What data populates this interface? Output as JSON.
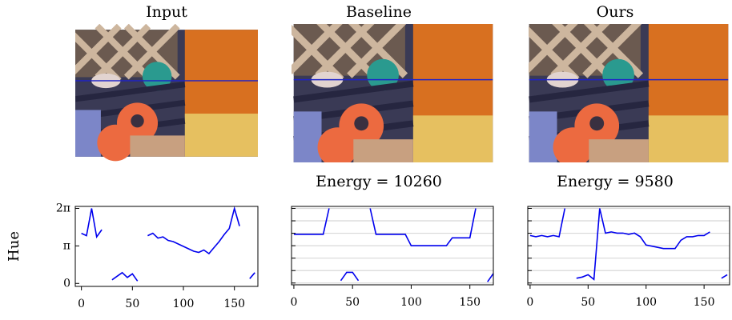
{
  "y_label": "Hue",
  "panels": [
    {
      "title": "Input",
      "plot": {
        "type": "line",
        "color": "#0000ee",
        "grid": false,
        "x": [
          0,
          5,
          10,
          15,
          20,
          25,
          30,
          35,
          40,
          45,
          50,
          55,
          60,
          65,
          70,
          75,
          80,
          85,
          90,
          95,
          100,
          105,
          110,
          115,
          120,
          125,
          130,
          135,
          140,
          145,
          150,
          155,
          160,
          165,
          170
        ],
        "values": [
          4.2,
          4.0,
          6.28,
          3.9,
          4.5,
          null,
          0.3,
          0.6,
          0.9,
          0.5,
          0.8,
          0.2,
          null,
          4.0,
          4.2,
          3.8,
          3.9,
          3.6,
          3.5,
          3.3,
          3.1,
          2.9,
          2.7,
          2.6,
          2.8,
          2.5,
          3.0,
          3.5,
          4.1,
          4.6,
          6.28,
          4.8,
          null,
          0.4,
          0.9
        ],
        "xlim": [
          -6,
          173
        ],
        "ylim": [
          -0.25,
          6.45
        ],
        "xticks": [
          0,
          50,
          100,
          150
        ],
        "yticks": [
          {
            "value": 0,
            "label": "0"
          },
          {
            "value": 3.1416,
            "label": "π"
          },
          {
            "value": 6.2832,
            "label": "2π"
          }
        ]
      }
    },
    {
      "title": "Baseline",
      "energy": "Energy = 10260",
      "plot": {
        "type": "line",
        "color": "#0000ee",
        "grid": true,
        "x": [
          0,
          5,
          10,
          15,
          20,
          25,
          30,
          35,
          40,
          45,
          50,
          55,
          60,
          65,
          70,
          75,
          80,
          85,
          90,
          95,
          100,
          105,
          110,
          115,
          120,
          125,
          130,
          135,
          140,
          145,
          150,
          155,
          160,
          165,
          170
        ],
        "values": [
          4.1,
          4.1,
          4.1,
          4.1,
          4.1,
          4.1,
          6.28,
          null,
          0.2,
          0.9,
          0.9,
          0.2,
          null,
          6.28,
          4.1,
          4.1,
          4.1,
          4.1,
          4.1,
          4.1,
          3.14,
          3.14,
          3.14,
          3.14,
          3.14,
          3.14,
          3.14,
          3.8,
          3.8,
          3.8,
          3.8,
          6.28,
          null,
          0.1,
          0.8
        ],
        "xlim": [
          -2,
          170
        ],
        "ylim": [
          -0.15,
          6.45
        ],
        "xticks": [
          0,
          50,
          100,
          150
        ],
        "yticks": [
          0,
          1.0472,
          2.0944,
          3.1416,
          4.1888,
          5.236,
          6.2832
        ]
      }
    },
    {
      "title": "Ours",
      "energy": "Energy = 9580",
      "plot": {
        "type": "line",
        "color": "#0000ee",
        "grid": true,
        "x": [
          0,
          5,
          10,
          15,
          20,
          25,
          30,
          35,
          40,
          45,
          50,
          55,
          60,
          65,
          70,
          75,
          80,
          85,
          90,
          95,
          100,
          105,
          110,
          115,
          120,
          125,
          130,
          135,
          140,
          145,
          150,
          155,
          160,
          165,
          170
        ],
        "values": [
          4.0,
          3.9,
          4.0,
          3.9,
          4.0,
          3.9,
          6.28,
          null,
          0.4,
          0.5,
          0.7,
          0.3,
          6.28,
          4.2,
          4.3,
          4.2,
          4.2,
          4.1,
          4.2,
          3.9,
          3.2,
          3.1,
          3.0,
          2.9,
          2.9,
          2.9,
          3.6,
          3.9,
          3.9,
          4.0,
          4.0,
          4.3,
          null,
          0.4,
          0.7
        ],
        "xlim": [
          -2,
          172
        ],
        "ylim": [
          -0.15,
          6.45
        ],
        "xticks": [
          0,
          50,
          100,
          150
        ],
        "yticks": [
          0,
          1.0472,
          2.0944,
          3.1416,
          4.1888,
          5.236,
          6.2832
        ]
      }
    }
  ]
}
